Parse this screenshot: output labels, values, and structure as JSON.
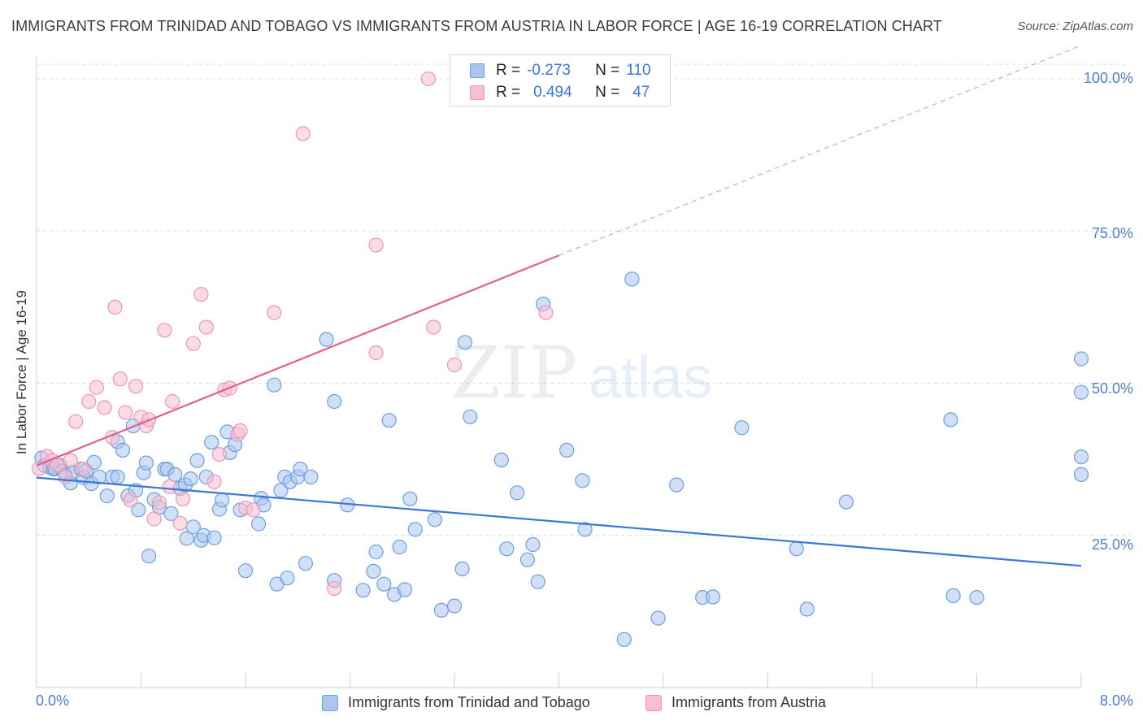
{
  "header": {
    "title": "IMMIGRANTS FROM TRINIDAD AND TOBAGO VS IMMIGRANTS FROM AUSTRIA IN LABOR FORCE | AGE 16-19 CORRELATION CHART",
    "source": "Source: ZipAtlas.com"
  },
  "watermark": {
    "zip": "ZIP",
    "atlas": "atlas"
  },
  "legend_top": {
    "rows": [
      {
        "r_label": "R =",
        "r_value": "-0.273",
        "n_label": "N =",
        "n_value": "110"
      },
      {
        "r_label": "R =",
        "r_value": "0.494",
        "n_label": "N =",
        "n_value": "47"
      }
    ]
  },
  "colors": {
    "blue_fill": "#a9c6ef",
    "blue_stroke": "#6e9ee0",
    "blue_line": "#3a78d4",
    "pink_fill": "#f7bfd2",
    "pink_stroke": "#ee95b4",
    "pink_line": "#e0608c",
    "tick_text": "#4a7fd1",
    "grid": "#dcdcdc"
  },
  "chart_data": {
    "type": "scatter",
    "title": "IMMIGRANTS FROM TRINIDAD AND TOBAGO VS IMMIGRANTS FROM AUSTRIA IN LABOR FORCE | AGE 16-19 CORRELATION CHART",
    "xlabel": "",
    "ylabel": "In Labor Force | Age 16-19",
    "xlim": [
      0,
      8.0
    ],
    "ylim": [
      0,
      102
    ],
    "x_tick_labels": [
      "0.0%",
      "8.0%"
    ],
    "y_ticks": [
      25,
      50,
      75,
      100
    ],
    "y_tick_labels": [
      "25.0%",
      "50.0%",
      "75.0%",
      "100.0%"
    ],
    "grid": true,
    "legend_position": "bottom",
    "series": [
      {
        "name": "Immigrants from Trinidad and Tobago",
        "R": -0.273,
        "N": 110,
        "trend": {
          "x0": 0.0,
          "y0": 34.5,
          "x1": 8.0,
          "y1": 20.0
        },
        "points": [
          [
            0.04,
            37.7
          ],
          [
            0.06,
            36.5
          ],
          [
            0.1,
            36.2
          ],
          [
            0.13,
            35.9
          ],
          [
            0.14,
            36.0
          ],
          [
            0.18,
            36.5
          ],
          [
            0.2,
            35.6
          ],
          [
            0.22,
            35.0
          ],
          [
            0.26,
            33.6
          ],
          [
            0.28,
            35.4
          ],
          [
            0.34,
            35.9
          ],
          [
            0.36,
            34.5
          ],
          [
            0.38,
            35.6
          ],
          [
            0.42,
            33.5
          ],
          [
            0.44,
            37.0
          ],
          [
            0.48,
            34.6
          ],
          [
            0.54,
            31.5
          ],
          [
            0.58,
            34.6
          ],
          [
            0.62,
            40.4
          ],
          [
            0.62,
            34.6
          ],
          [
            0.66,
            39.0
          ],
          [
            0.7,
            31.5
          ],
          [
            0.74,
            43.0
          ],
          [
            0.76,
            32.4
          ],
          [
            0.78,
            29.2
          ],
          [
            0.82,
            35.3
          ],
          [
            0.84,
            36.9
          ],
          [
            0.86,
            21.6
          ],
          [
            0.9,
            30.9
          ],
          [
            0.94,
            29.6
          ],
          [
            0.98,
            35.9
          ],
          [
            1.0,
            35.9
          ],
          [
            1.03,
            28.6
          ],
          [
            1.06,
            35.0
          ],
          [
            1.1,
            32.7
          ],
          [
            1.14,
            33.3
          ],
          [
            1.15,
            24.5
          ],
          [
            1.18,
            34.3
          ],
          [
            1.2,
            26.4
          ],
          [
            1.23,
            37.3
          ],
          [
            1.26,
            24.2
          ],
          [
            1.28,
            25.0
          ],
          [
            1.3,
            34.6
          ],
          [
            1.34,
            40.3
          ],
          [
            1.36,
            24.6
          ],
          [
            1.4,
            29.3
          ],
          [
            1.42,
            30.8
          ],
          [
            1.46,
            42.0
          ],
          [
            1.48,
            38.6
          ],
          [
            1.52,
            39.9
          ],
          [
            1.56,
            29.2
          ],
          [
            1.6,
            19.2
          ],
          [
            1.7,
            26.9
          ],
          [
            1.72,
            31.1
          ],
          [
            1.74,
            30.0
          ],
          [
            1.82,
            49.7
          ],
          [
            1.84,
            17.0
          ],
          [
            1.87,
            32.4
          ],
          [
            1.9,
            34.6
          ],
          [
            1.92,
            18.0
          ],
          [
            1.94,
            33.8
          ],
          [
            2.0,
            34.6
          ],
          [
            2.02,
            35.9
          ],
          [
            2.06,
            20.4
          ],
          [
            2.1,
            34.6
          ],
          [
            2.22,
            57.2
          ],
          [
            2.28,
            47.0
          ],
          [
            2.28,
            17.6
          ],
          [
            2.38,
            30.0
          ],
          [
            2.5,
            16.0
          ],
          [
            2.58,
            19.1
          ],
          [
            2.6,
            22.3
          ],
          [
            2.66,
            17.0
          ],
          [
            2.7,
            43.9
          ],
          [
            2.74,
            15.3
          ],
          [
            2.78,
            23.1
          ],
          [
            2.82,
            16.1
          ],
          [
            2.86,
            31.0
          ],
          [
            2.9,
            26.0
          ],
          [
            3.05,
            27.6
          ],
          [
            3.1,
            12.7
          ],
          [
            3.2,
            13.4
          ],
          [
            3.26,
            19.5
          ],
          [
            3.28,
            56.7
          ],
          [
            3.32,
            44.5
          ],
          [
            3.56,
            37.4
          ],
          [
            3.6,
            22.8
          ],
          [
            3.68,
            32.0
          ],
          [
            3.76,
            21.0
          ],
          [
            3.8,
            23.5
          ],
          [
            3.84,
            17.4
          ],
          [
            3.88,
            63.0
          ],
          [
            4.06,
            39.0
          ],
          [
            4.18,
            34.0
          ],
          [
            4.2,
            26.0
          ],
          [
            4.5,
            7.9
          ],
          [
            4.56,
            67.1
          ],
          [
            4.76,
            11.4
          ],
          [
            4.9,
            33.3
          ],
          [
            5.1,
            14.8
          ],
          [
            5.18,
            14.9
          ],
          [
            5.4,
            42.7
          ],
          [
            5.82,
            22.8
          ],
          [
            5.9,
            12.9
          ],
          [
            6.2,
            30.5
          ],
          [
            8.0,
            37.9
          ],
          [
            8.0,
            54.0
          ],
          [
            8.0,
            48.5
          ],
          [
            8.0,
            35.0
          ],
          [
            7.0,
            44.0
          ],
          [
            7.02,
            15.1
          ],
          [
            7.2,
            14.8
          ]
        ]
      },
      {
        "name": "Immigrants from Austria",
        "R": 0.494,
        "N": 47,
        "trend": {
          "x0": 0.0,
          "y0": 36.5,
          "x1": 4.0,
          "y1": 71.0,
          "dashed_to": {
            "x": 8.0,
            "y": 105.5
          }
        },
        "points": [
          [
            0.02,
            36.0
          ],
          [
            0.08,
            38.0
          ],
          [
            0.12,
            37.3
          ],
          [
            0.16,
            36.5
          ],
          [
            0.22,
            34.6
          ],
          [
            0.26,
            37.3
          ],
          [
            0.3,
            43.7
          ],
          [
            0.36,
            35.9
          ],
          [
            0.4,
            47.0
          ],
          [
            0.46,
            49.3
          ],
          [
            0.52,
            46.0
          ],
          [
            0.58,
            41.1
          ],
          [
            0.6,
            62.5
          ],
          [
            0.64,
            50.7
          ],
          [
            0.68,
            45.2
          ],
          [
            0.72,
            30.8
          ],
          [
            0.76,
            49.5
          ],
          [
            0.8,
            44.4
          ],
          [
            0.84,
            43.0
          ],
          [
            0.86,
            44.0
          ],
          [
            0.9,
            27.7
          ],
          [
            0.94,
            30.4
          ],
          [
            0.98,
            58.7
          ],
          [
            1.02,
            33.0
          ],
          [
            1.04,
            47.0
          ],
          [
            1.1,
            27.0
          ],
          [
            1.12,
            31.0
          ],
          [
            1.2,
            56.5
          ],
          [
            1.26,
            64.6
          ],
          [
            1.3,
            59.2
          ],
          [
            1.36,
            33.8
          ],
          [
            1.4,
            38.3
          ],
          [
            1.44,
            48.9
          ],
          [
            1.48,
            49.2
          ],
          [
            1.54,
            41.6
          ],
          [
            1.56,
            42.2
          ],
          [
            1.6,
            29.5
          ],
          [
            1.66,
            29.2
          ],
          [
            1.82,
            61.6
          ],
          [
            2.04,
            91.0
          ],
          [
            2.28,
            16.3
          ],
          [
            2.6,
            55.0
          ],
          [
            2.6,
            72.7
          ],
          [
            3.0,
            100.0
          ],
          [
            3.04,
            59.2
          ],
          [
            3.2,
            53.0
          ],
          [
            3.9,
            61.6
          ]
        ]
      }
    ]
  },
  "legend_bottom": {
    "items": [
      "Immigrants from Trinidad and Tobago",
      "Immigrants from Austria"
    ]
  },
  "axis": {
    "x_left_label": "0.0%",
    "x_right_label": "8.0%",
    "y_labels": [
      "100.0%",
      "75.0%",
      "50.0%",
      "25.0%"
    ]
  }
}
